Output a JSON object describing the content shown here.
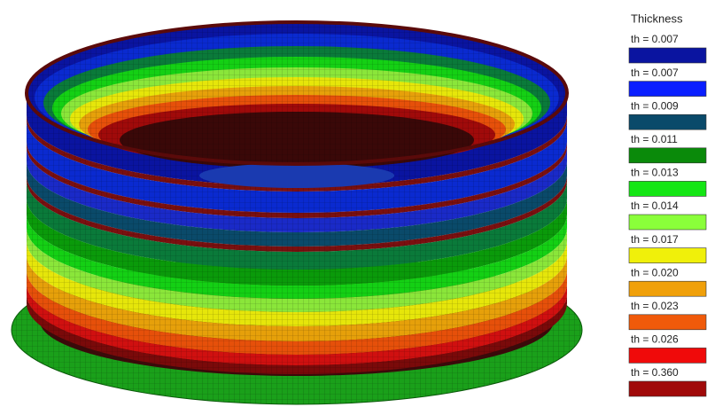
{
  "legend": {
    "title": "Thickness",
    "entries": [
      {
        "label": "th = 0.007",
        "color": "#0a14a0"
      },
      {
        "label": "th = 0.007",
        "color": "#0a1eff"
      },
      {
        "label": "th = 0.009",
        "color": "#0a4a6a"
      },
      {
        "label": "th = 0.011",
        "color": "#0a8a0a"
      },
      {
        "label": "th = 0.013",
        "color": "#14e614"
      },
      {
        "label": "th = 0.014",
        "color": "#8aff3a"
      },
      {
        "label": "th = 0.017",
        "color": "#f0f00a"
      },
      {
        "label": "th = 0.020",
        "color": "#f0a00a"
      },
      {
        "label": "th = 0.023",
        "color": "#f05a0a"
      },
      {
        "label": "th = 0.026",
        "color": "#f00a0a"
      },
      {
        "label": "th = 0.360",
        "color": "#a00a0a"
      }
    ]
  }
}
